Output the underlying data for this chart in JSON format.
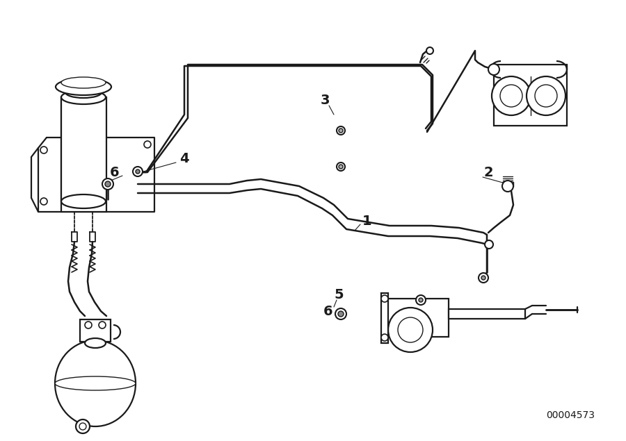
{
  "bg_color": "#ffffff",
  "line_color": "#1a1a1a",
  "label_color": "#1a1a1a",
  "diagram_id": "00004573",
  "fig_width": 9.0,
  "fig_height": 6.35,
  "lw_pipe": 1.8,
  "lw_component": 1.6,
  "lw_thin": 1.0
}
